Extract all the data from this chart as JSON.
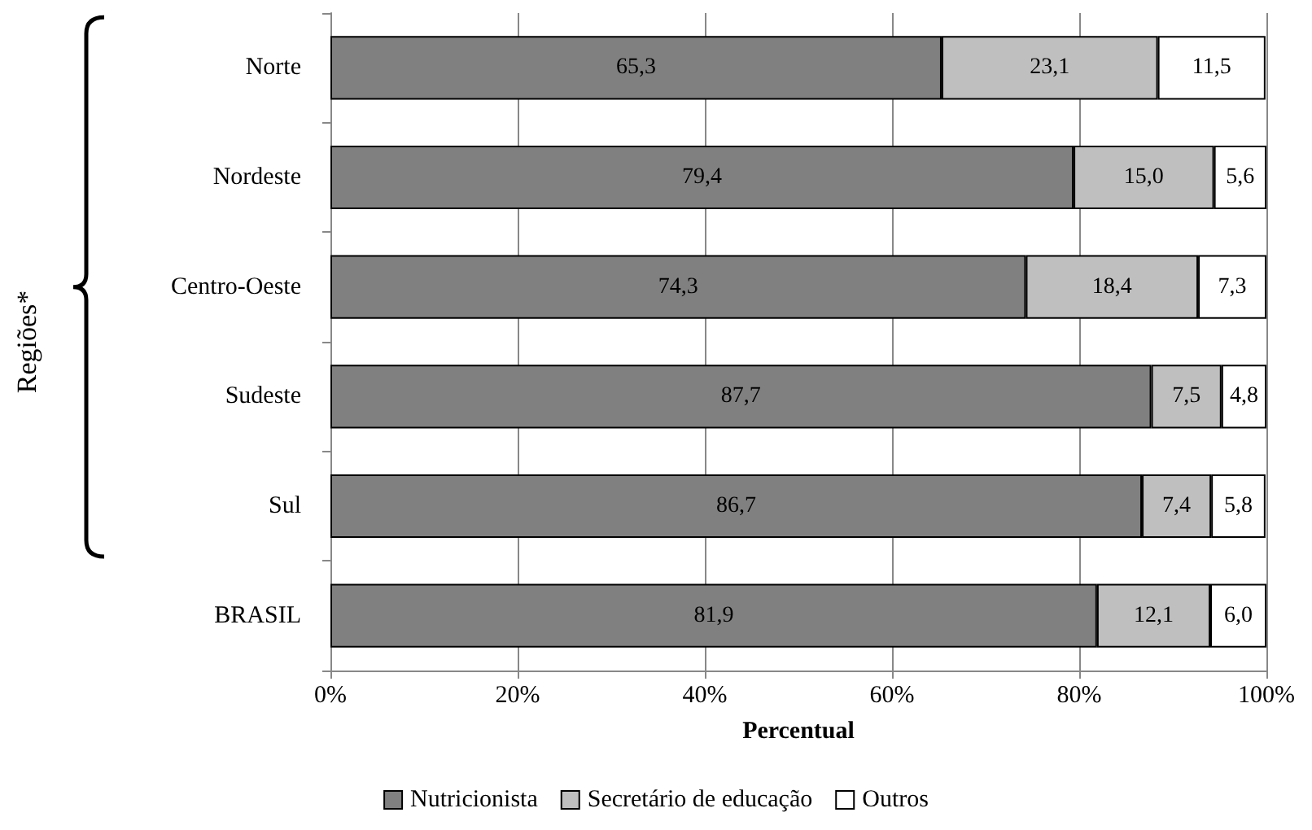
{
  "chart_data": {
    "type": "bar",
    "orientation": "horizontal",
    "stacked": true,
    "xlabel": "Percentual",
    "ylabel": "Regiões*",
    "categories": [
      "Norte",
      "Nordeste",
      "Centro-Oeste",
      "Sudeste",
      "Sul",
      "BRASIL"
    ],
    "series": [
      {
        "name": "Nutricionista",
        "color": "#808080",
        "values": [
          65.3,
          79.4,
          74.3,
          87.7,
          86.7,
          81.9
        ],
        "value_labels": [
          "65,3",
          "79,4",
          "74,3",
          "87,7",
          "86,7",
          "81,9"
        ]
      },
      {
        "name": "Secretário de educação",
        "color": "#bfbfbf",
        "values": [
          23.1,
          15.0,
          18.4,
          7.5,
          7.4,
          12.1
        ],
        "value_labels": [
          "23,1",
          "15,0",
          "18,4",
          "7,5",
          "7,4",
          "12,1"
        ]
      },
      {
        "name": "Outros",
        "color": "#ffffff",
        "values": [
          11.5,
          5.6,
          7.3,
          4.8,
          5.8,
          6.0
        ],
        "value_labels": [
          "11,5",
          "5,6",
          "7,3",
          "4,8",
          "5,8",
          "6,0"
        ]
      }
    ],
    "xlim": [
      0,
      100
    ],
    "xticks": [
      {
        "value": 0,
        "label": "0%"
      },
      {
        "value": 20,
        "label": "20%"
      },
      {
        "value": 40,
        "label": "40%"
      },
      {
        "value": 60,
        "label": "60%"
      },
      {
        "value": 80,
        "label": "80%"
      },
      {
        "value": 100,
        "label": "100%"
      }
    ],
    "grid": "x",
    "legend": "bottom"
  }
}
